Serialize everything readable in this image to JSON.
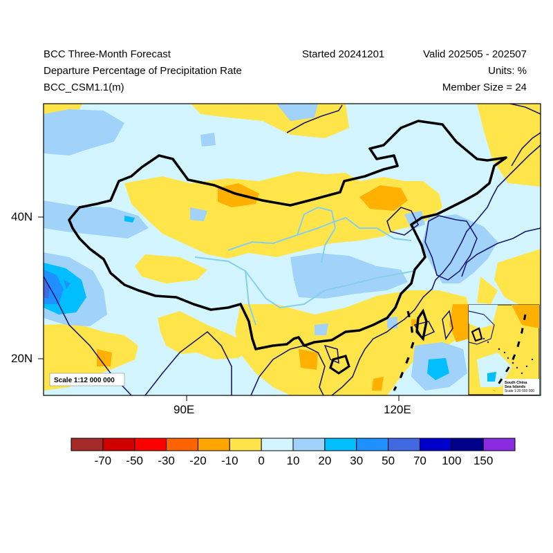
{
  "header": {
    "title": "BCC Three-Month Forecast",
    "subtitle": "Departure Percentage of Precipitation Rate",
    "model": "BCC_CSM1.1(m)",
    "started": "Started 20241201",
    "valid": "Valid 202505 - 202507",
    "units": "Units: %",
    "member_size": "Member Size = 24"
  },
  "map": {
    "lat_labels": [
      "40N",
      "20N"
    ],
    "lon_labels": [
      "90E",
      "120E"
    ],
    "scale_main": "Scale 1:12 000 000",
    "inset_title_1": "South China",
    "inset_title_2": "Sea Islands",
    "inset_scale": "Scale 1:20 000 000",
    "colors": {
      "neg_10": "#FFE54A",
      "neg_20": "#FFB000",
      "neg_30": "#FF7A00",
      "pos_0_10": "#D2F5FF",
      "pos_10_20": "#A0D2FA",
      "pos_20_30": "#00BEFF",
      "pos_30_50": "#1E90FF",
      "pos_50_70": "#4169E1",
      "border": "#000000",
      "coast": "#191970",
      "river": "#87CEEB"
    }
  },
  "legend": {
    "colors": [
      "#A52A2A",
      "#D00000",
      "#FF0000",
      "#FF6400",
      "#FFA500",
      "#FFE54A",
      "#D2F5FF",
      "#A0D2FA",
      "#00BEFF",
      "#1E90FF",
      "#4169E1",
      "#0000CD",
      "#00008B",
      "#8A2BE2"
    ],
    "labels": [
      "-70",
      "-50",
      "-30",
      "-20",
      "-10",
      "0",
      "10",
      "20",
      "30",
      "50",
      "70",
      "100",
      "150"
    ]
  }
}
